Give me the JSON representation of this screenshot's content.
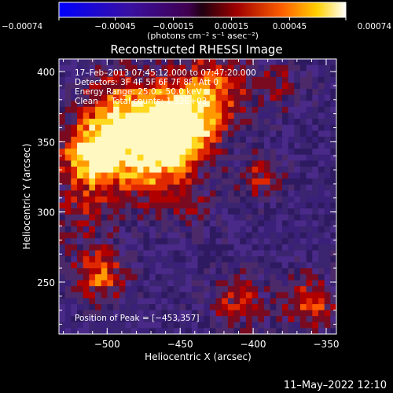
{
  "chart_data": {
    "type": "heatmap",
    "title": "Reconstructed RHESSI Image",
    "xlabel": "Heliocentric X (arcsec)",
    "ylabel": "Heliocentric Y (arcsec)",
    "xlim": [
      -533,
      -343
    ],
    "ylim": [
      213,
      409
    ],
    "x_ticks": [
      -500,
      -450,
      -400,
      -350
    ],
    "x_tick_labels": [
      "−500",
      "−450",
      "−400",
      "−350"
    ],
    "y_ticks": [
      250,
      300,
      350,
      400
    ],
    "y_tick_labels": [
      "250",
      "300",
      "350",
      "400"
    ],
    "colorbar": {
      "ticks": [
        -0.00074,
        -0.00045,
        -0.00015,
        0.00015,
        0.00045,
        0.00074
      ],
      "tick_labels": [
        "−0.00074",
        "−0.00045",
        "−0.00015",
        "0.00015",
        "0.00045",
        "0.00074"
      ],
      "range": [
        -0.00074,
        0.00074
      ],
      "unit_label": "(photons cm⁻² s⁻¹ asec⁻²)"
    },
    "annotations": [
      "17–Feb–2013 07:45:12.000 to 07:47:20.000",
      "Detectors: 3F 4F 5F 6F 7F 8F, Att 0",
      "Energy Range: 25.0 – 50.0 keV",
      "Clean     Total counts: 1.32E+03"
    ],
    "peak_label": "Position of Peak = [−453,357]",
    "peak": [
      -453,
      357
    ],
    "grid": false,
    "colormap": [
      "#0000ff",
      "#400060",
      "#4a2a70",
      "#a00000",
      "#e02000",
      "#ff8000",
      "#ffe000",
      "#ffffff"
    ]
  },
  "timestamp": "11–May–2022 12:10"
}
